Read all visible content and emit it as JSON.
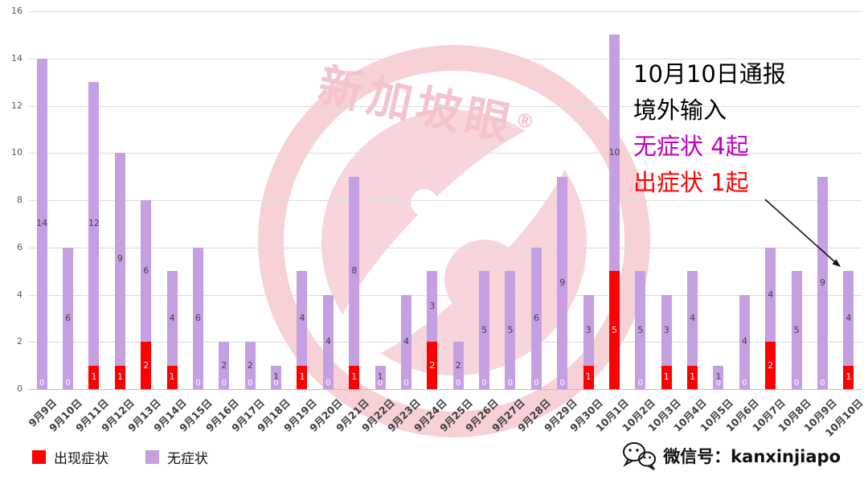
{
  "chart_data": {
    "type": "bar",
    "stacked": true,
    "title": "",
    "categories": [
      "9月9日",
      "9月10日",
      "9月11日",
      "9月12日",
      "9月13日",
      "9月14日",
      "9月15日",
      "9月16日",
      "9月17日",
      "9月18日",
      "9月19日",
      "9月20日",
      "9月21日",
      "9月22日",
      "9月23日",
      "9月24日",
      "9月25日",
      "9月26日",
      "9月27日",
      "9月28日",
      "9月29日",
      "9月30日",
      "10月1日",
      "10月2日",
      "10月3日",
      "10月4日",
      "10月5日",
      "10月6日",
      "10月7日",
      "10月8日",
      "10月9日",
      "10月10日"
    ],
    "series": [
      {
        "name": "出现症状",
        "color": "#fe0000",
        "label_color": "#ffffff",
        "values": [
          0,
          0,
          1,
          1,
          2,
          1,
          0,
          0,
          0,
          0,
          1,
          0,
          1,
          0,
          0,
          2,
          0,
          0,
          0,
          0,
          0,
          1,
          5,
          0,
          1,
          1,
          0,
          0,
          2,
          0,
          0,
          1
        ]
      },
      {
        "name": "无症状",
        "color": "#c4a0e2",
        "label_color": "#404040",
        "values": [
          14,
          6,
          12,
          9,
          6,
          4,
          6,
          2,
          2,
          1,
          4,
          4,
          8,
          1,
          4,
          3,
          2,
          5,
          5,
          6,
          9,
          3,
          10,
          5,
          3,
          4,
          1,
          4,
          4,
          5,
          9,
          4
        ]
      }
    ],
    "ylim": [
      0,
      16
    ],
    "yticks": [
      0,
      2,
      4,
      6,
      8,
      10,
      12,
      14,
      16
    ],
    "grid": true,
    "legend_position": "bottom-left",
    "zero_label_color": "#ffffff"
  },
  "annotation": {
    "lines": [
      {
        "text": "10月10日通报",
        "color": "#000000"
      },
      {
        "text": "境外输入",
        "color": "#000000"
      },
      {
        "text": "无症状 4起",
        "color": "#c000c0"
      },
      {
        "text": "出症状 1起",
        "color": "#ff0000"
      }
    ]
  },
  "legend": {
    "items": [
      {
        "label": "出现症状",
        "color": "#fe0000"
      },
      {
        "label": "无症状",
        "color": "#c4a0e2"
      }
    ]
  },
  "watermark": {
    "text": "新加坡眼",
    "mark": "®"
  },
  "footer": {
    "wechat_label": "微信号：kanxinjiapo"
  }
}
